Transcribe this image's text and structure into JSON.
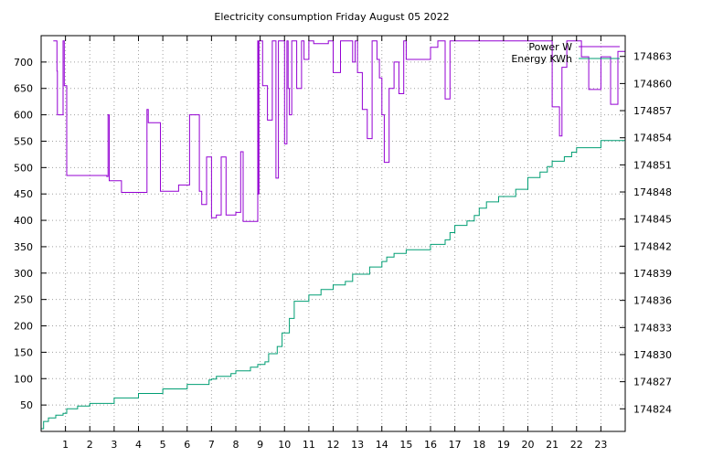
{
  "chart_data": {
    "type": "line",
    "title": "Electricity consumption Friday August 05 2022",
    "xlabel": "",
    "ylabel": "",
    "y2label": "",
    "xlim": [
      0,
      24
    ],
    "ylim": [
      0,
      750
    ],
    "y2lim": [
      174821.5,
      174865.3
    ],
    "grid": true,
    "legend_position": "top-right",
    "x_ticks": [
      1,
      2,
      3,
      4,
      5,
      6,
      7,
      8,
      9,
      10,
      11,
      12,
      13,
      14,
      15,
      16,
      17,
      18,
      19,
      20,
      21,
      22,
      23
    ],
    "y_ticks": [
      50,
      100,
      150,
      200,
      250,
      300,
      350,
      400,
      450,
      500,
      550,
      600,
      650,
      700
    ],
    "y2_ticks": [
      174824,
      174827,
      174830,
      174833,
      174836,
      174839,
      174842,
      174845,
      174848,
      174851,
      174854,
      174857,
      174860,
      174863
    ],
    "colors": {
      "power": "#9400d3",
      "energy": "#009e73"
    },
    "series": [
      {
        "name": "Power W",
        "axis": "left",
        "x": [
          0.5,
          0.65,
          0.67,
          0.7,
          0.9,
          0.95,
          1.05,
          1.1,
          2.0,
          2.7,
          2.75,
          2.8,
          3.3,
          4.3,
          4.35,
          4.4,
          4.9,
          5.6,
          5.65,
          6.1,
          6.5,
          6.6,
          6.8,
          7.0,
          7.2,
          7.4,
          7.6,
          8.0,
          8.2,
          8.3,
          8.5,
          8.9,
          8.92,
          8.95,
          9.1,
          9.3,
          9.5,
          9.65,
          9.75,
          10.0,
          10.1,
          10.15,
          10.2,
          10.3,
          10.5,
          10.7,
          10.8,
          11.0,
          11.2,
          11.8,
          12.0,
          12.3,
          12.5,
          12.8,
          12.9,
          13.0,
          13.2,
          13.4,
          13.6,
          13.8,
          13.9,
          14.0,
          14.1,
          14.3,
          14.5,
          14.7,
          14.9,
          15.0,
          15.5,
          16.0,
          16.3,
          16.6,
          16.8,
          17.0,
          20.5,
          21.0,
          21.3,
          21.4,
          21.6,
          21.8,
          22.2,
          22.5,
          23.0,
          23.4,
          23.7
        ],
        "y": [
          740,
          683,
          600,
          600,
          740,
          655,
          485,
          485,
          485,
          483,
          600,
          475,
          453,
          453,
          610,
          585,
          455,
          455,
          467,
          600,
          455,
          430,
          520,
          405,
          410,
          520,
          410,
          415,
          530,
          398,
          398,
          740,
          450,
          740,
          655,
          590,
          740,
          480,
          740,
          545,
          740,
          650,
          600,
          740,
          650,
          740,
          705,
          740,
          735,
          740,
          680,
          740,
          740,
          700,
          740,
          680,
          610,
          555,
          740,
          705,
          670,
          600,
          510,
          650,
          700,
          640,
          740,
          705,
          705,
          728,
          740,
          630,
          740,
          740,
          740,
          615,
          560,
          690,
          740,
          740,
          710,
          648,
          710,
          620,
          720
        ]
      },
      {
        "name": "Energy KWh",
        "axis": "right",
        "x": [
          0,
          0.1,
          0.3,
          0.6,
          0.9,
          1.05,
          1.5,
          2.0,
          3.0,
          4.0,
          5.0,
          6.0,
          6.9,
          7.0,
          7.2,
          7.8,
          8.0,
          8.6,
          8.9,
          9.2,
          9.35,
          9.7,
          9.9,
          10.2,
          10.4,
          11.0,
          11.5,
          12.0,
          12.5,
          12.8,
          13.5,
          14.0,
          14.2,
          14.5,
          15.0,
          16.0,
          16.6,
          16.8,
          17.0,
          17.5,
          17.8,
          18.0,
          18.3,
          18.8,
          19.5,
          20.0,
          20.5,
          20.8,
          21.0,
          21.5,
          21.8,
          22.0,
          23.0,
          24.0
        ],
        "y": [
          174821.8,
          174822.6,
          174823.0,
          174823.3,
          174823.5,
          174824.0,
          174824.3,
          174824.6,
          174825.2,
          174825.7,
          174826.2,
          174826.7,
          174827.2,
          174827.3,
          174827.6,
          174827.9,
          174828.2,
          174828.6,
          174828.9,
          174829.2,
          174830.1,
          174830.9,
          174832.4,
          174834.0,
          174835.9,
          174836.6,
          174837.2,
          174837.7,
          174838.1,
          174838.9,
          174839.7,
          174840.3,
          174840.8,
          174841.2,
          174841.6,
          174842.2,
          174842.7,
          174843.5,
          174844.3,
          174844.8,
          174845.4,
          174846.2,
          174846.9,
          174847.5,
          174848.3,
          174849.6,
          174850.2,
          174850.8,
          174851.4,
          174851.9,
          174852.4,
          174852.9,
          174853.7,
          174854.7
        ]
      }
    ]
  }
}
